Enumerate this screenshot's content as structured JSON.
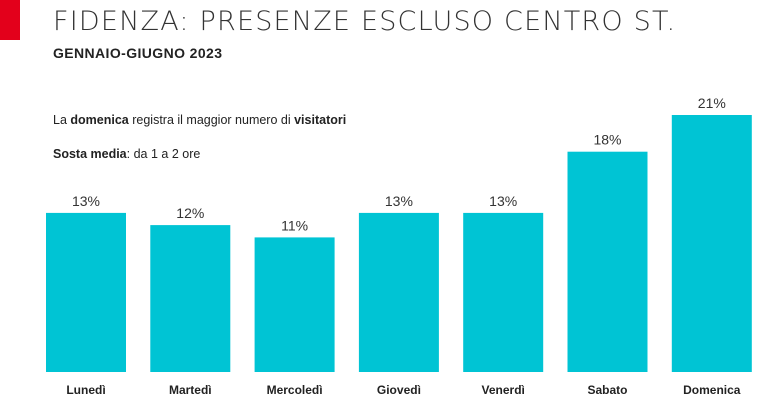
{
  "header": {
    "title": "FIDENZA: PRESENZE ESCLUSO CENTRO ST.",
    "subtitle": "GENNAIO-GIUGNO 2023"
  },
  "notes": {
    "line1": {
      "pre": "La ",
      "bold1": "domenica",
      "mid": " registra il maggior numero di ",
      "bold2": "visitatori"
    },
    "line2": {
      "bold": "Sosta media",
      "rest": ": da 1 a 2 ore"
    }
  },
  "colors": {
    "bar": "#00c4d4",
    "accent": "#e3001b"
  },
  "chart_data": {
    "type": "bar",
    "categories": [
      "Lunedì",
      "Martedì",
      "Mercoledì",
      "Giovedì",
      "Venerdì",
      "Sabato",
      "Domenica"
    ],
    "values": [
      13,
      12,
      11,
      13,
      13,
      18,
      21
    ],
    "data_labels": [
      "13%",
      "12%",
      "11%",
      "13%",
      "13%",
      "18%",
      "21%"
    ],
    "title": "",
    "xlabel": "",
    "ylabel": "",
    "ylim": [
      0,
      21
    ],
    "grid": false,
    "legend": "none"
  }
}
